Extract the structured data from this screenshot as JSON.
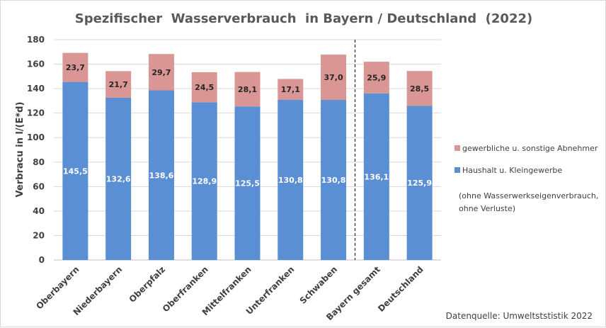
{
  "colors": {
    "haushalt": "#5b8fd4",
    "gewerbe": "#d99694",
    "grid": "#d9d9d9",
    "divider": "#000000"
  },
  "chart_data": {
    "type": "bar",
    "stacked": true,
    "title": "Spezifischer  Wasserverbrauch  in Bayern / Deutschland  (2022)",
    "ylabel": "Verbracu in l/(E*d)",
    "ylim": [
      0,
      180
    ],
    "yticks": [
      0,
      20,
      40,
      60,
      80,
      100,
      120,
      140,
      160,
      180
    ],
    "grid": true,
    "legend_position": "right",
    "categories": [
      "Oberbayern",
      "Niederbayern",
      "Oberpfalz",
      "Oberfranken",
      "Mittelfranken",
      "Unterfranken",
      "Schwaben",
      "Bayern gesamt",
      "Deutschland"
    ],
    "series": [
      {
        "name": "Haushalt u. Kleingewerbe",
        "values": [
          145.5,
          132.6,
          138.6,
          128.9,
          125.5,
          130.8,
          130.8,
          136.1,
          125.9
        ],
        "labels": [
          "145,5",
          "132,6",
          "138,6",
          "128,9",
          "125,5",
          "130,8",
          "130,8",
          "136,1",
          "125,9"
        ]
      },
      {
        "name": "gewerbliche u. sonstige Abnehmer",
        "values": [
          23.7,
          21.7,
          29.7,
          24.5,
          28.1,
          17.1,
          37.0,
          25.9,
          28.5
        ],
        "labels": [
          "23,7",
          "21,7",
          "29,7",
          "24,5",
          "28,1",
          "17,1",
          "37,0",
          "25,9",
          "28,5"
        ]
      }
    ],
    "legend_order": [
      "gewerbliche u. sonstige Abnehmer",
      "Haushalt u. Kleingewerbe"
    ],
    "divider_after_category": "Schwaben",
    "note": [
      "(ohne Wasserwerkseigenverbrauch,",
      "ohne Verluste)"
    ],
    "source": "Datenquelle: Umweltststistik 2022"
  }
}
